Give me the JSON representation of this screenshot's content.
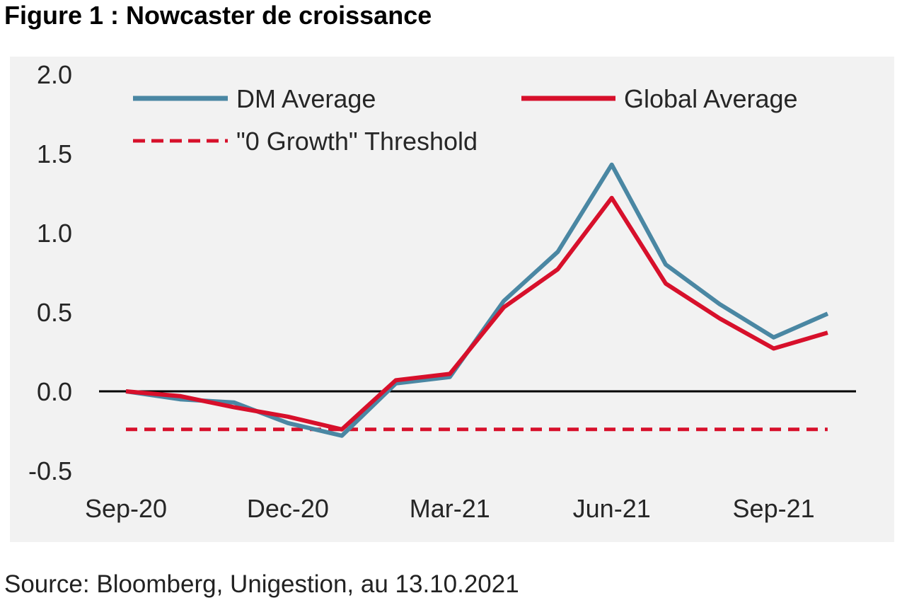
{
  "figure": {
    "title": "Figure 1 : Nowcaster de croissance",
    "source": "Source: Bloomberg, Unigestion, au 13.10.2021"
  },
  "chart_data": {
    "type": "line",
    "title": "",
    "xlabel": "",
    "ylabel": "",
    "ylim": [
      -0.5,
      2.0
    ],
    "y_ticks": [
      "2.0",
      "1.5",
      "1.0",
      "0.5",
      "0.0",
      "-0.5"
    ],
    "x_tick_labels": [
      "Sep-20",
      "Dec-20",
      "Mar-21",
      "Jun-21",
      "Sep-21"
    ],
    "x": [
      "Sep-20",
      "Oct-20",
      "Nov-20",
      "Dec-20",
      "Jan-21",
      "Feb-21",
      "Mar-21",
      "Apr-21",
      "May-21",
      "Jun-21",
      "Jul-21",
      "Aug-21",
      "Sep-21",
      "Oct-21"
    ],
    "series": [
      {
        "name": "DM Average",
        "color": "#4a87a3",
        "style": "solid",
        "values": [
          0.0,
          -0.05,
          -0.07,
          -0.2,
          -0.28,
          0.05,
          0.09,
          0.57,
          0.88,
          1.43,
          0.8,
          0.55,
          0.34,
          0.49
        ]
      },
      {
        "name": "Global Average",
        "color": "#d7102b",
        "style": "solid",
        "values": [
          0.0,
          -0.03,
          -0.1,
          -0.16,
          -0.24,
          0.07,
          0.11,
          0.53,
          0.77,
          1.22,
          0.68,
          0.46,
          0.27,
          0.37
        ]
      },
      {
        "name": "\"0 Growth\" Threshold",
        "color": "#d7102b",
        "style": "dashed",
        "values": [
          -0.24,
          -0.24,
          -0.24,
          -0.24,
          -0.24,
          -0.24,
          -0.24,
          -0.24,
          -0.24,
          -0.24,
          -0.24,
          -0.24,
          -0.24,
          -0.24
        ]
      }
    ],
    "zero_line": true,
    "grid": false,
    "legend_position": "top"
  }
}
